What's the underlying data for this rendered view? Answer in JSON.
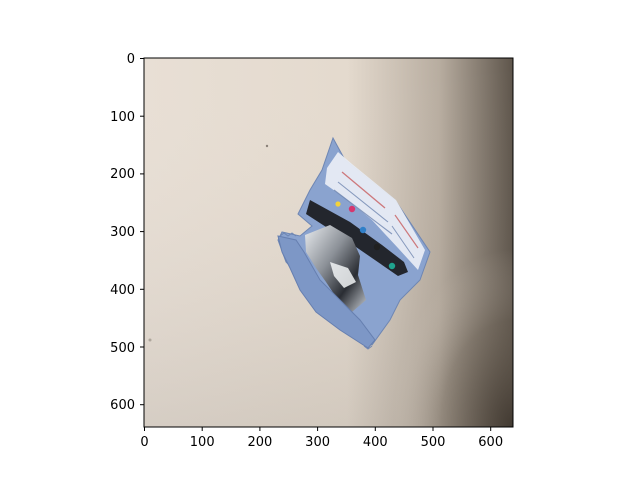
{
  "figure": {
    "x_ticks": [
      "0",
      "100",
      "200",
      "300",
      "400",
      "500",
      "600"
    ],
    "y_ticks": [
      "0",
      "100",
      "200",
      "300",
      "400",
      "500",
      "600"
    ]
  },
  "image": {
    "subject": "crumpled-snack-wrapper",
    "background_color": "#e6ddd3",
    "shadow_color": "#5e554b",
    "wrapper_color": "#7f9ac8"
  }
}
